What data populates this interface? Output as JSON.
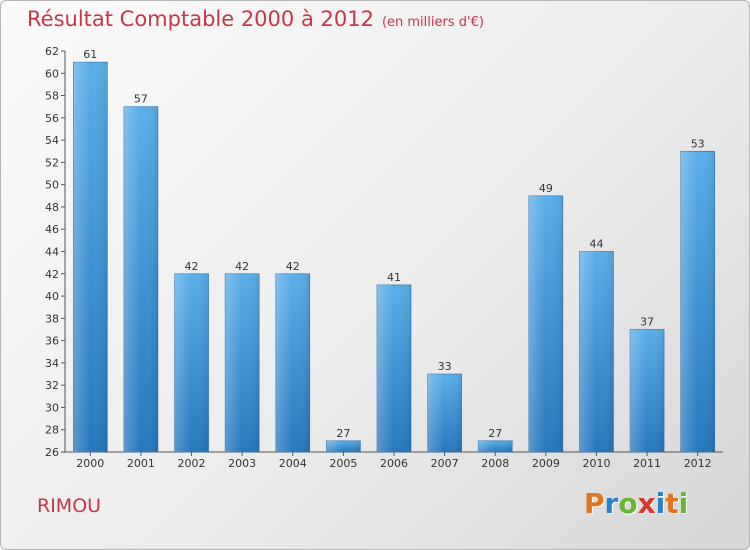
{
  "header": {
    "title": "Résultat Comptable 2000 à 2012",
    "subtitle": "(en milliers d'€)"
  },
  "commune": "RIMOU",
  "logo": {
    "letters": [
      "P",
      "r",
      "o",
      "x",
      "i",
      "t",
      "i"
    ],
    "colors": [
      "#e2731f",
      "#2a7fc9",
      "#6bb43a",
      "#d9372b",
      "#2a7fc9",
      "#e2731f",
      "#6bb43a"
    ]
  },
  "chart_data": {
    "type": "bar",
    "title": "Résultat Comptable 2000 à 2012",
    "subtitle": "(en milliers d'€)",
    "categories": [
      "2000",
      "2001",
      "2002",
      "2003",
      "2004",
      "2005",
      "2006",
      "2007",
      "2008",
      "2009",
      "2010",
      "2011",
      "2012"
    ],
    "values": [
      61,
      57,
      42,
      42,
      42,
      27,
      41,
      33,
      27,
      49,
      44,
      37,
      53
    ],
    "ylim": [
      26,
      62
    ],
    "yticks": [
      26,
      28,
      30,
      32,
      34,
      36,
      38,
      40,
      42,
      44,
      46,
      48,
      50,
      52,
      54,
      56,
      58,
      60,
      62
    ],
    "xlabel": "",
    "ylabel": "",
    "grid": false,
    "bar_color": "#3f93d8"
  }
}
